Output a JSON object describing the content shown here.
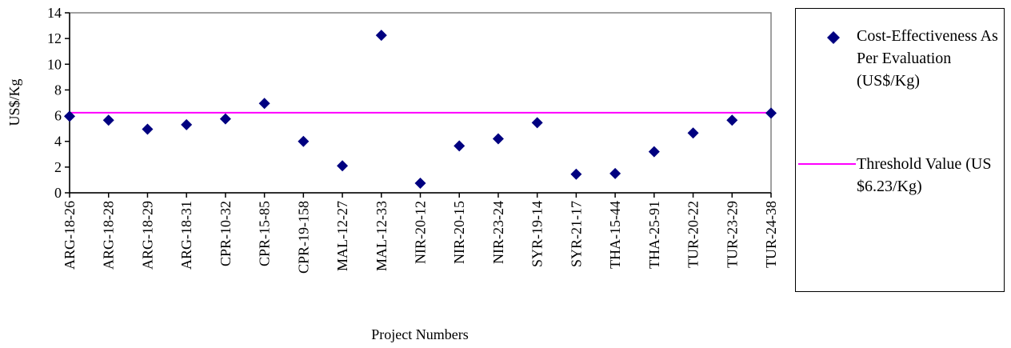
{
  "chart_data": {
    "type": "scatter",
    "xlabel": "Project Numbers",
    "ylabel": "US$/Kg",
    "ylim": [
      0,
      14
    ],
    "yticks": [
      0,
      2,
      4,
      6,
      8,
      10,
      12,
      14
    ],
    "grid": false,
    "legend_position": "right",
    "categories": [
      "ARG-18-26",
      "ARG-18-28",
      "ARG-18-29",
      "ARG-18-31",
      "CPR-10-32",
      "CPR-15-85",
      "CPR-19-158",
      "MAL-12-27",
      "MAL-12-33",
      "NIR-20-12",
      "NIR-20-15",
      "NIR-23-24",
      "SYR-19-14",
      "SYR-21-17",
      "THA-15-44",
      "THA-25-91",
      "TUR-20-22",
      "TUR-23-29",
      "TUR-24-38"
    ],
    "series": [
      {
        "name": "Cost-Effectiveness As Per Evaluation (US$/Kg)",
        "type": "scatter",
        "marker": "diamond",
        "color": "#000080",
        "values": [
          5.95,
          5.65,
          4.95,
          5.3,
          5.75,
          6.95,
          4.0,
          2.1,
          12.25,
          0.75,
          3.65,
          4.2,
          5.45,
          1.45,
          1.5,
          3.2,
          4.65,
          5.65,
          6.2
        ]
      },
      {
        "name": "Threshold Value (US $6.23/Kg)",
        "type": "line",
        "color": "#ff00ff",
        "value": 6.23
      }
    ],
    "legend": {
      "entries": [
        {
          "label": "Cost-Effectiveness As Per Evaluation (US$/Kg)",
          "marker": "diamond"
        },
        {
          "label": "Threshold Value (US $6.23/Kg)",
          "marker": "line"
        }
      ]
    }
  }
}
